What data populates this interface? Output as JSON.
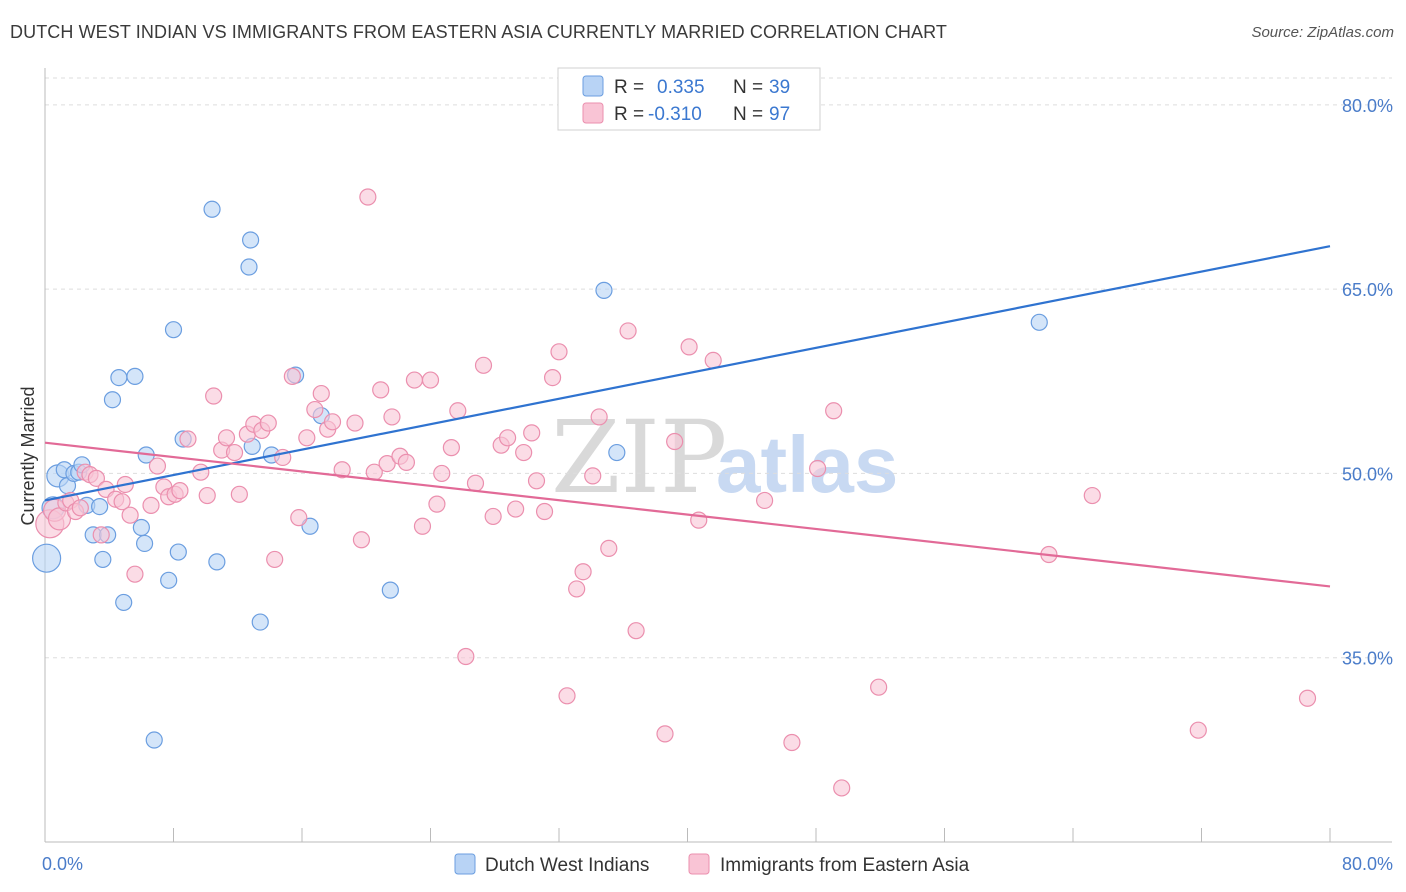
{
  "title": "DUTCH WEST INDIAN VS IMMIGRANTS FROM EASTERN ASIA CURRENTLY MARRIED CORRELATION CHART",
  "source": "Source: ZipAtlas.com",
  "watermark": {
    "zip": "ZIP",
    "atlas": "atlas"
  },
  "colors": {
    "blue_fill": "#b8d3f5",
    "blue_stroke": "#6b9ee0",
    "blue_line": "#2f73d0",
    "pink_fill": "#f9c4d5",
    "pink_stroke": "#eb8fae",
    "pink_line": "#e26a97",
    "tick_text": "#4a7cc9",
    "grid": "#dddddd"
  },
  "legend": {
    "rows": [
      {
        "r_label": "R =",
        "r_value": "0.335",
        "n_label": "N =",
        "n_value": "39"
      },
      {
        "r_label": "R =",
        "r_value": "-0.310",
        "n_label": "N =",
        "n_value": "97"
      }
    ]
  },
  "chart_data": {
    "type": "scatter",
    "xlabel": "",
    "ylabel": "Currently Married",
    "xlim": [
      0,
      80
    ],
    "ylim": [
      20,
      83
    ],
    "x_tick_labels": [
      "0.0%",
      "80.0%"
    ],
    "y_ticks": [
      35,
      50,
      65,
      80
    ],
    "y_tick_labels": [
      "35.0%",
      "50.0%",
      "65.0%",
      "80.0%"
    ],
    "grid": true,
    "legend_position": "top-center",
    "series": [
      {
        "name": "Dutch West Indians",
        "color": "#b8d3f5",
        "trend": {
          "x": [
            0,
            80
          ],
          "y": [
            47.8,
            68.5
          ]
        },
        "points": [
          [
            0.1,
            43.1
          ],
          [
            0.5,
            47.2
          ],
          [
            0.8,
            49.8
          ],
          [
            1.2,
            50.3
          ],
          [
            1.4,
            49.0
          ],
          [
            1.8,
            50.0
          ],
          [
            2.1,
            50.1
          ],
          [
            2.3,
            50.7
          ],
          [
            2.6,
            47.4
          ],
          [
            3.0,
            45.0
          ],
          [
            3.4,
            47.3
          ],
          [
            3.6,
            43.0
          ],
          [
            3.9,
            45.0
          ],
          [
            4.2,
            56.0
          ],
          [
            4.6,
            57.8
          ],
          [
            4.9,
            39.5
          ],
          [
            5.6,
            57.9
          ],
          [
            6.0,
            45.6
          ],
          [
            6.2,
            44.3
          ],
          [
            6.3,
            51.5
          ],
          [
            6.8,
            28.3
          ],
          [
            7.7,
            41.3
          ],
          [
            8.0,
            61.7
          ],
          [
            8.3,
            43.6
          ],
          [
            8.6,
            52.8
          ],
          [
            10.4,
            71.5
          ],
          [
            10.7,
            42.8
          ],
          [
            12.7,
            66.8
          ],
          [
            12.8,
            69.0
          ],
          [
            12.9,
            52.2
          ],
          [
            13.4,
            37.9
          ],
          [
            14.1,
            51.5
          ],
          [
            15.6,
            58.0
          ],
          [
            16.5,
            45.7
          ],
          [
            17.2,
            54.7
          ],
          [
            21.5,
            40.5
          ],
          [
            34.8,
            64.9
          ],
          [
            35.6,
            51.7
          ],
          [
            61.9,
            62.3
          ]
        ]
      },
      {
        "name": "Immigrants from Eastern Asia",
        "color": "#f9c4d5",
        "trend": {
          "x": [
            0,
            80
          ],
          "y": [
            52.5,
            40.8
          ]
        },
        "points": [
          [
            0.3,
            45.9
          ],
          [
            0.6,
            47.0
          ],
          [
            0.9,
            46.3
          ],
          [
            1.3,
            47.6
          ],
          [
            1.6,
            47.8
          ],
          [
            1.9,
            46.9
          ],
          [
            2.2,
            47.2
          ],
          [
            2.5,
            50.1
          ],
          [
            2.8,
            49.9
          ],
          [
            3.2,
            49.6
          ],
          [
            3.5,
            45.0
          ],
          [
            3.8,
            48.7
          ],
          [
            4.4,
            47.9
          ],
          [
            4.8,
            47.7
          ],
          [
            5.0,
            49.1
          ],
          [
            5.3,
            46.6
          ],
          [
            5.6,
            41.8
          ],
          [
            6.6,
            47.4
          ],
          [
            7.0,
            50.6
          ],
          [
            7.4,
            48.9
          ],
          [
            7.7,
            48.1
          ],
          [
            8.1,
            48.3
          ],
          [
            8.4,
            48.6
          ],
          [
            8.9,
            52.8
          ],
          [
            9.7,
            50.1
          ],
          [
            10.1,
            48.2
          ],
          [
            10.5,
            56.3
          ],
          [
            11.0,
            51.9
          ],
          [
            11.3,
            52.9
          ],
          [
            11.8,
            51.7
          ],
          [
            12.1,
            48.3
          ],
          [
            12.6,
            53.2
          ],
          [
            13.0,
            54.0
          ],
          [
            13.5,
            53.5
          ],
          [
            13.9,
            54.1
          ],
          [
            14.3,
            43.0
          ],
          [
            14.8,
            51.3
          ],
          [
            15.4,
            57.9
          ],
          [
            15.8,
            46.4
          ],
          [
            16.3,
            52.9
          ],
          [
            16.8,
            55.2
          ],
          [
            17.2,
            56.5
          ],
          [
            17.6,
            53.6
          ],
          [
            17.9,
            54.2
          ],
          [
            18.5,
            50.3
          ],
          [
            19.3,
            54.1
          ],
          [
            19.7,
            44.6
          ],
          [
            20.1,
            72.5
          ],
          [
            20.5,
            50.1
          ],
          [
            20.9,
            56.8
          ],
          [
            21.3,
            50.8
          ],
          [
            21.6,
            54.6
          ],
          [
            22.1,
            51.4
          ],
          [
            22.5,
            50.9
          ],
          [
            23.0,
            57.6
          ],
          [
            23.5,
            45.7
          ],
          [
            24.0,
            57.6
          ],
          [
            24.4,
            47.5
          ],
          [
            24.7,
            50.0
          ],
          [
            25.3,
            52.1
          ],
          [
            25.7,
            55.1
          ],
          [
            26.2,
            35.1
          ],
          [
            26.8,
            49.2
          ],
          [
            27.3,
            58.8
          ],
          [
            27.9,
            46.5
          ],
          [
            28.4,
            52.3
          ],
          [
            28.8,
            52.9
          ],
          [
            29.3,
            47.1
          ],
          [
            29.8,
            51.7
          ],
          [
            30.3,
            53.3
          ],
          [
            30.6,
            49.4
          ],
          [
            31.1,
            46.9
          ],
          [
            31.6,
            57.8
          ],
          [
            32.0,
            59.9
          ],
          [
            32.5,
            31.9
          ],
          [
            33.1,
            40.6
          ],
          [
            33.5,
            42.0
          ],
          [
            34.1,
            49.8
          ],
          [
            34.5,
            54.6
          ],
          [
            35.1,
            43.9
          ],
          [
            36.3,
            61.6
          ],
          [
            36.8,
            37.2
          ],
          [
            38.6,
            28.8
          ],
          [
            39.2,
            52.6
          ],
          [
            40.1,
            60.3
          ],
          [
            40.7,
            46.2
          ],
          [
            41.6,
            59.2
          ],
          [
            44.8,
            47.8
          ],
          [
            46.5,
            28.1
          ],
          [
            48.1,
            50.4
          ],
          [
            49.1,
            55.1
          ],
          [
            49.6,
            24.4
          ],
          [
            51.9,
            32.6
          ],
          [
            62.5,
            43.4
          ],
          [
            65.2,
            48.2
          ],
          [
            71.8,
            29.1
          ],
          [
            78.6,
            31.7
          ]
        ]
      }
    ]
  }
}
